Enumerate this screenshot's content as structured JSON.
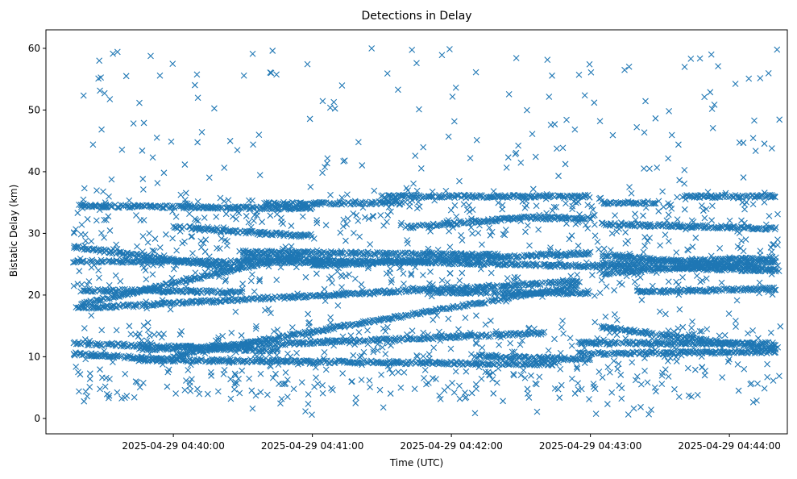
{
  "chart_data": {
    "type": "scatter",
    "title": "Detections in Delay",
    "xlabel": "Time (UTC)",
    "ylabel": "Bistatic Delay (km)",
    "x_ticks": [
      "2025-04-29 04:40:00",
      "2025-04-29 04:41:00",
      "2025-04-29 04:42:00",
      "2025-04-29 04:43:00",
      "2025-04-29 04:44:00"
    ],
    "y_ticks": [
      "0",
      "10",
      "20",
      "30",
      "40",
      "50",
      "60"
    ],
    "xlim": [
      "2025-04-29 04:39:05",
      "2025-04-29 04:44:25"
    ],
    "ylim": [
      -2.5,
      63
    ],
    "marker": "x",
    "color": "#1f77b4",
    "series": [
      {
        "tracks": [
          {
            "t_start": "04:39:17",
            "t_end": "04:42:55",
            "y_start": 17.8,
            "y_end": 22.2
          },
          {
            "t_start": "04:39:17",
            "t_end": "04:40:30",
            "y_start": 27.8,
            "y_end": 24.2
          },
          {
            "t_start": "04:39:17",
            "t_end": "04:41:20",
            "y_start": 25.5,
            "y_end": 25.3
          },
          {
            "t_start": "04:39:17",
            "t_end": "04:40:45",
            "y_start": 12.2,
            "y_end": 11.0
          },
          {
            "t_start": "04:39:17",
            "t_end": "04:40:00",
            "y_start": 10.5,
            "y_end": 9.5
          },
          {
            "t_start": "04:39:20",
            "t_end": "04:41:00",
            "y_start": 34.5,
            "y_end": 34.0
          },
          {
            "t_start": "04:39:20",
            "t_end": "04:40:30",
            "y_start": 20.8,
            "y_end": 20.5
          },
          {
            "t_start": "04:39:20",
            "t_end": "04:40:55",
            "y_start": 18.5,
            "y_end": 26.5
          },
          {
            "t_start": "04:39:45",
            "t_end": "04:42:40",
            "y_start": 11.2,
            "y_end": 13.8
          },
          {
            "t_start": "04:39:45",
            "t_end": "04:42:45",
            "y_start": 9.5,
            "y_end": 8.8
          },
          {
            "t_start": "04:40:00",
            "t_end": "04:42:55",
            "y_start": 10.2,
            "y_end": 21.5
          },
          {
            "t_start": "04:40:00",
            "t_end": "04:41:00",
            "y_start": 31.0,
            "y_end": 29.5
          },
          {
            "t_start": "04:40:30",
            "t_end": "04:42:20",
            "y_start": 27.0,
            "y_end": 26.5
          },
          {
            "t_start": "04:40:30",
            "t_end": "04:44:20",
            "y_start": 26.0,
            "y_end": 24.0
          },
          {
            "t_start": "04:40:40",
            "t_end": "04:41:40",
            "y_start": 34.8,
            "y_end": 35.0
          },
          {
            "t_start": "04:41:00",
            "t_end": "04:43:00",
            "y_start": 24.8,
            "y_end": 26.8
          },
          {
            "t_start": "04:41:30",
            "t_end": "04:43:00",
            "y_start": 36.0,
            "y_end": 36.0
          },
          {
            "t_start": "04:41:40",
            "t_end": "04:42:30",
            "y_start": 31.0,
            "y_end": 32.5
          },
          {
            "t_start": "04:42:30",
            "t_end": "04:43:00",
            "y_start": 32.5,
            "y_end": 32.5
          },
          {
            "t_start": "04:41:50",
            "t_end": "04:43:00",
            "y_start": 20.5,
            "y_end": 20.3
          },
          {
            "t_start": "04:42:10",
            "t_end": "04:43:00",
            "y_start": 10.2,
            "y_end": 9.5
          },
          {
            "t_start": "04:42:55",
            "t_end": "04:44:20",
            "y_start": 12.3,
            "y_end": 12.1
          },
          {
            "t_start": "04:42:55",
            "t_end": "04:44:20",
            "y_start": 10.5,
            "y_end": 10.8
          },
          {
            "t_start": "04:43:05",
            "t_end": "04:44:20",
            "y_start": 14.8,
            "y_end": 11.2
          },
          {
            "t_start": "04:43:05",
            "t_end": "04:43:30",
            "y_start": 35.0,
            "y_end": 35.0
          },
          {
            "t_start": "04:43:05",
            "t_end": "04:44:20",
            "y_start": 31.5,
            "y_end": 30.8
          },
          {
            "t_start": "04:43:05",
            "t_end": "04:44:20",
            "y_start": 26.5,
            "y_end": 24.2
          },
          {
            "t_start": "04:43:05",
            "t_end": "04:44:20",
            "y_start": 25.0,
            "y_end": 26.0
          },
          {
            "t_start": "04:43:05",
            "t_end": "04:44:20",
            "y_start": 23.5,
            "y_end": 25.5
          },
          {
            "t_start": "04:43:20",
            "t_end": "04:44:20",
            "y_start": 20.5,
            "y_end": 21.0
          },
          {
            "t_start": "04:43:40",
            "t_end": "04:44:20",
            "y_start": 36.0,
            "y_end": 36.0
          }
        ],
        "noise_range": {
          "t": [
            "04:39:17",
            "04:44:22"
          ],
          "y": [
            0.5,
            60
          ]
        }
      }
    ],
    "grid": false
  }
}
